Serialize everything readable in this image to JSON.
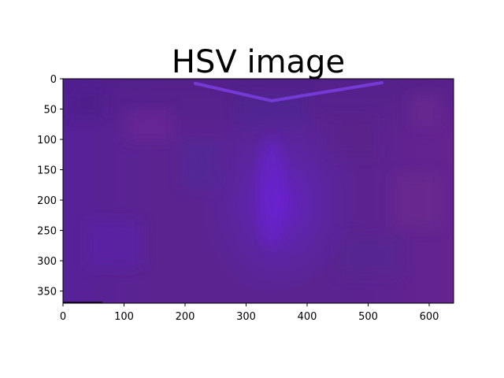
{
  "figure": {
    "title": "HSV image"
  },
  "image": {
    "x_ticks": [
      "0",
      "100",
      "200",
      "300",
      "400",
      "500",
      "600"
    ],
    "y_ticks": [
      "0",
      "50",
      "100",
      "150",
      "200",
      "250",
      "300",
      "350"
    ],
    "xlim": [
      0,
      640
    ],
    "ylim": [
      370,
      0
    ],
    "palette": {
      "base": "#5b2390",
      "magenta": "#6a2490",
      "blue": "#4a2aa6",
      "glow": "#6a1fd0",
      "line": "#7a3ee0"
    }
  }
}
